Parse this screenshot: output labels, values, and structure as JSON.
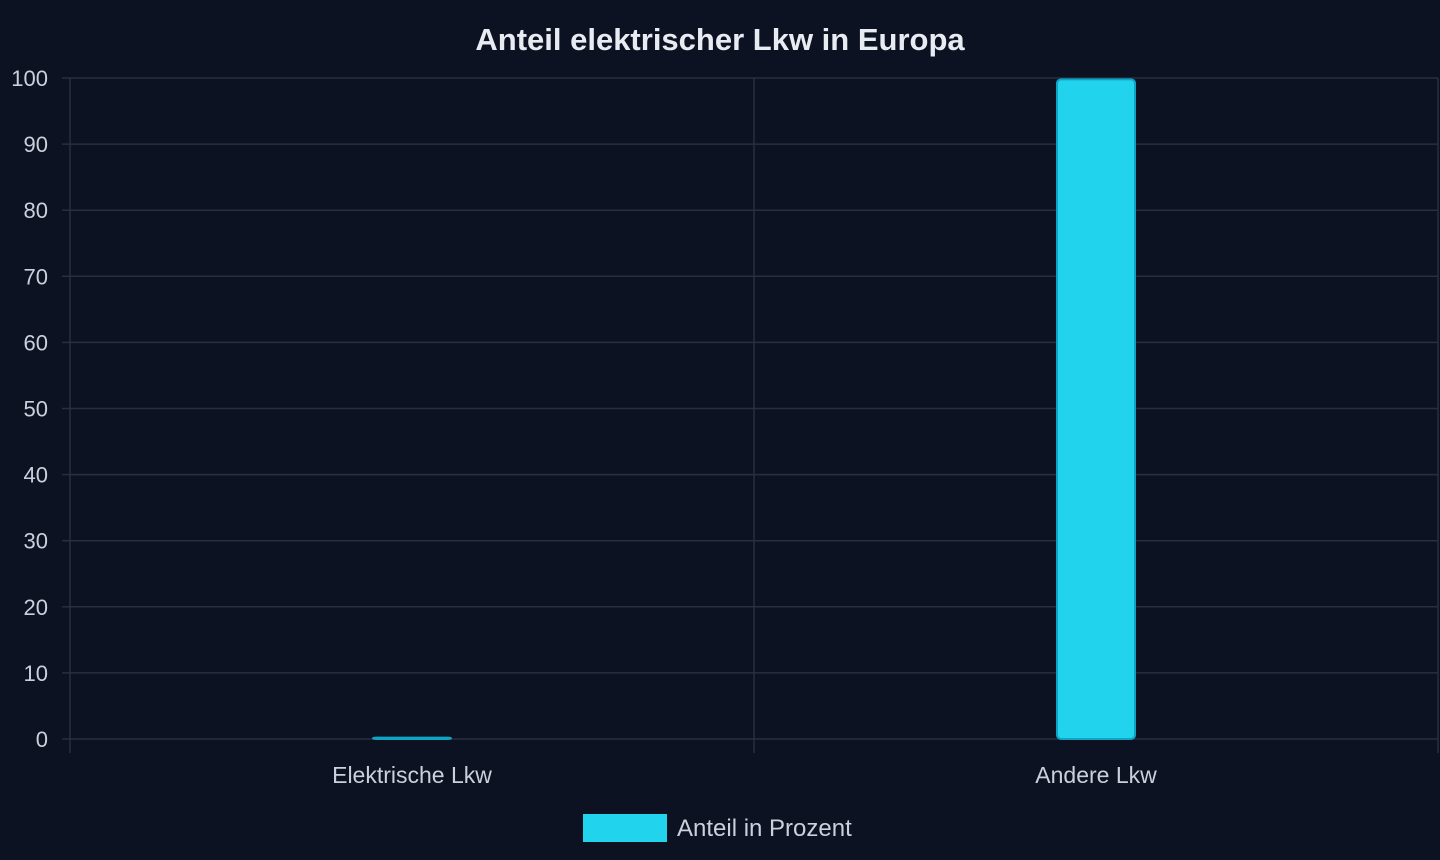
{
  "chart_data": {
    "type": "bar",
    "title": "Anteil elektrischer Lkw in Europa",
    "xlabel": "",
    "ylabel": "",
    "categories": [
      "Elektrische Lkw",
      "Andere Lkw"
    ],
    "series": [
      {
        "name": "Anteil in Prozent",
        "values": [
          0.2,
          99.8
        ],
        "color": "#22d3ee"
      }
    ],
    "ylim": [
      0,
      100
    ],
    "yticks": [
      "0",
      "10",
      "20",
      "30",
      "40",
      "50",
      "60",
      "70",
      "80",
      "90",
      "100"
    ],
    "grid": true,
    "legend_position": "bottom-center"
  },
  "colors": {
    "background": "#0c1221",
    "grid": "#263041",
    "axis_text": "#c9d1dc",
    "title_text": "#e8ecf2",
    "bar_fill": "#22d3ee",
    "bar_stroke": "#0ea5c4"
  }
}
